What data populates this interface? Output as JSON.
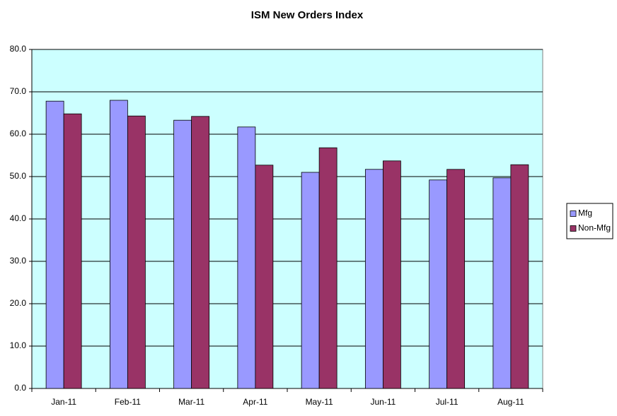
{
  "chart_data": {
    "type": "bar",
    "title": "ISM New Orders Index",
    "categories": [
      "Jan-11",
      "Feb-11",
      "Mar-11",
      "Apr-11",
      "May-11",
      "Jun-11",
      "Jul-11",
      "Aug-11"
    ],
    "series": [
      {
        "name": "Mfg",
        "color": "#9999ff",
        "values": [
          67.8,
          68.0,
          63.3,
          61.7,
          51.0,
          51.7,
          49.2,
          49.7
        ]
      },
      {
        "name": "Non-Mfg",
        "color": "#993366",
        "values": [
          64.8,
          64.3,
          64.2,
          52.7,
          56.8,
          53.7,
          51.7,
          52.8
        ]
      }
    ],
    "ylim": [
      0,
      80
    ],
    "yticks": [
      {
        "value": 0,
        "label": "0.0"
      },
      {
        "value": 10,
        "label": "10.0"
      },
      {
        "value": 20,
        "label": "20.0"
      },
      {
        "value": 30,
        "label": "30.0"
      },
      {
        "value": 40,
        "label": "40.0"
      },
      {
        "value": 50,
        "label": "50.0"
      },
      {
        "value": 60,
        "label": "60.0"
      },
      {
        "value": 70,
        "label": "70.0"
      },
      {
        "value": 80,
        "label": "80.0"
      }
    ],
    "grid": true,
    "plot_background": "#ccffff",
    "legend": "right"
  }
}
